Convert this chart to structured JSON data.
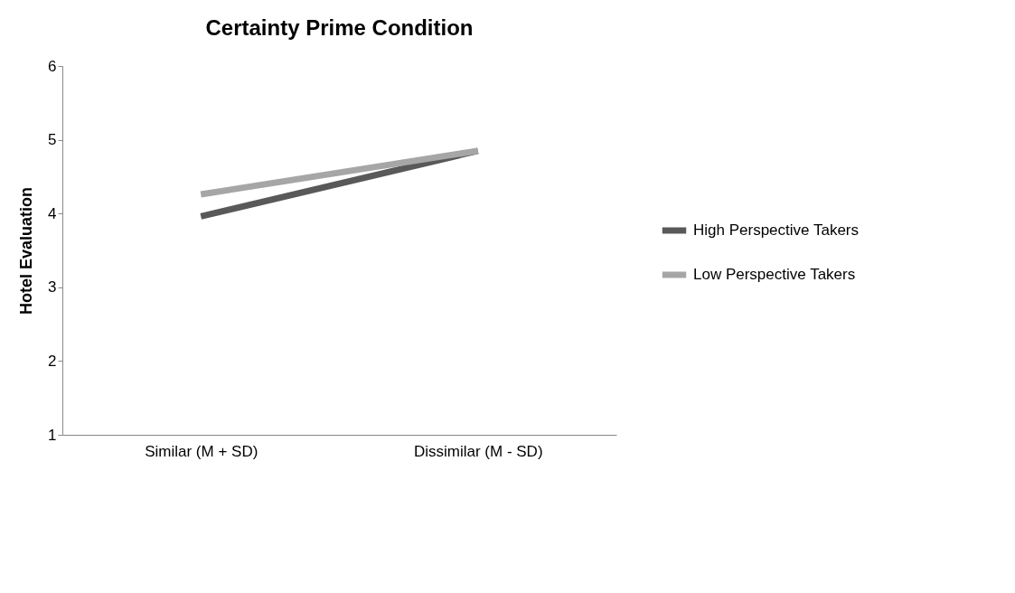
{
  "chart_data": {
    "type": "line",
    "title": "Certainty Prime Condition",
    "ylabel": "Hotel Evaluation",
    "categories": [
      "Similar (M + SD)",
      "Dissimilar (M - SD)"
    ],
    "series": [
      {
        "name": "High Perspective Takers",
        "color": "#595959",
        "values": [
          3.96,
          4.85
        ]
      },
      {
        "name": "Low Perspective Takers",
        "color": "#a6a6a6",
        "values": [
          4.26,
          4.85
        ]
      }
    ],
    "ylim": [
      1,
      6
    ],
    "yticks": [
      1,
      2,
      3,
      4,
      5,
      6
    ],
    "legend": "right",
    "marker": "none",
    "line_style": "solid"
  }
}
